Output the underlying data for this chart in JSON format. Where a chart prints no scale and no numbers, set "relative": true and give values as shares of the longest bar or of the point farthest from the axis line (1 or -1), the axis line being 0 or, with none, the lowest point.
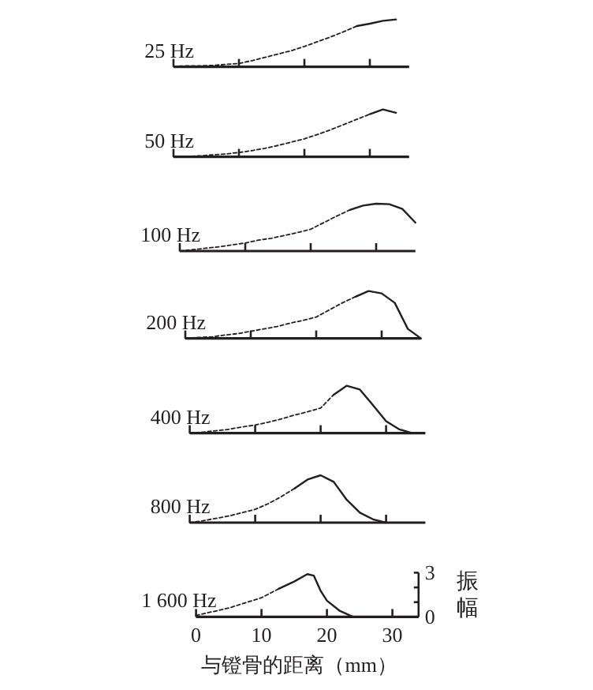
{
  "chart_data": [
    {
      "type": "line",
      "title": "25 Hz",
      "relative": true,
      "categories": [
        null,
        null,
        null,
        null,
        null,
        null,
        null,
        null,
        null,
        null,
        null,
        null,
        null,
        null,
        null,
        null,
        null,
        null,
        null
      ],
      "series": [
        {
          "color": "#231f20",
          "line_style": "dashed",
          "values": [
            0.01,
            0.02,
            0.02,
            0.03,
            0.05,
            0.07,
            0.13,
            0.2,
            0.27,
            0.34,
            0.43,
            0.53,
            0.63,
            0.74,
            0.86,
            null,
            null,
            null,
            null
          ]
        },
        {
          "color": "#231f20",
          "line_style": "solid",
          "values": [
            null,
            null,
            null,
            null,
            null,
            null,
            null,
            null,
            null,
            null,
            null,
            null,
            null,
            null,
            0.86,
            0.91,
            0.97,
            1,
            null
          ]
        }
      ]
    },
    {
      "type": "line",
      "title": "50 Hz",
      "relative": true,
      "categories": [
        null,
        null,
        null,
        null,
        null,
        null,
        null,
        null,
        null,
        null,
        null,
        null,
        null,
        null,
        null,
        null,
        null,
        null,
        null
      ],
      "series": [
        {
          "color": "#231f20",
          "line_style": "dashed",
          "values": [
            0,
            0.01,
            0.02,
            0.04,
            0.06,
            0.09,
            0.13,
            0.18,
            0.24,
            0.31,
            0.38,
            0.47,
            0.57,
            0.68,
            0.79,
            0.9,
            null,
            null,
            null
          ]
        },
        {
          "color": "#231f20",
          "line_style": "solid",
          "values": [
            null,
            null,
            null,
            null,
            null,
            null,
            null,
            null,
            null,
            null,
            null,
            null,
            null,
            null,
            null,
            0.9,
            1,
            0.93,
            null
          ]
        }
      ]
    },
    {
      "type": "line",
      "title": "100 Hz",
      "relative": true,
      "categories": [
        null,
        null,
        null,
        null,
        null,
        null,
        null,
        null,
        null,
        null,
        null,
        null,
        null,
        null,
        null,
        null,
        null,
        null,
        null
      ],
      "series": [
        {
          "color": "#231f20",
          "line_style": "dashed",
          "values": [
            0,
            0.03,
            0.06,
            0.09,
            0.13,
            0.17,
            0.23,
            0.27,
            0.33,
            0.39,
            0.46,
            0.6,
            0.74,
            0.87,
            null,
            null,
            null,
            null,
            null
          ]
        },
        {
          "color": "#231f20",
          "line_style": "solid",
          "values": [
            null,
            null,
            null,
            null,
            null,
            null,
            null,
            null,
            null,
            null,
            null,
            null,
            null,
            0.87,
            0.96,
            1,
            0.99,
            0.89,
            0.6
          ]
        }
      ]
    },
    {
      "type": "line",
      "title": "200 Hz",
      "relative": true,
      "categories": [
        null,
        null,
        null,
        null,
        null,
        null,
        null,
        null,
        null,
        null,
        null,
        null,
        null,
        null,
        null,
        null,
        null,
        null,
        null
      ],
      "series": [
        {
          "color": "#231f20",
          "line_style": "dashed",
          "values": [
            0,
            0.02,
            0.03,
            0.07,
            0.1,
            0.15,
            0.2,
            0.25,
            0.32,
            0.38,
            0.45,
            0.6,
            0.75,
            0.88,
            null,
            null,
            null,
            null,
            null
          ]
        },
        {
          "color": "#231f20",
          "line_style": "solid",
          "values": [
            null,
            null,
            null,
            null,
            null,
            null,
            null,
            null,
            null,
            null,
            null,
            null,
            null,
            0.88,
            1,
            0.95,
            0.75,
            0.2,
            0
          ]
        }
      ]
    },
    {
      "type": "line",
      "title": "400 Hz",
      "relative": true,
      "categories": [
        null,
        null,
        null,
        null,
        null,
        null,
        null,
        null,
        null,
        null,
        null,
        null,
        null,
        null,
        null,
        null,
        null,
        null,
        null
      ],
      "series": [
        {
          "color": "#231f20",
          "line_style": "dashed",
          "values": [
            0,
            0.02,
            0.05,
            0.08,
            0.13,
            0.17,
            0.23,
            0.3,
            0.38,
            0.45,
            0.53,
            0.81,
            null,
            null,
            null,
            null,
            null,
            null,
            null
          ]
        },
        {
          "color": "#231f20",
          "line_style": "solid",
          "values": [
            null,
            null,
            null,
            null,
            null,
            null,
            null,
            null,
            null,
            null,
            null,
            0.81,
            1,
            0.92,
            0.59,
            0.25,
            0.08,
            0,
            null
          ]
        }
      ]
    },
    {
      "type": "line",
      "title": "800 Hz",
      "relative": true,
      "categories": [
        null,
        null,
        null,
        null,
        null,
        null,
        null,
        null,
        null,
        null,
        null,
        null,
        null,
        null,
        null,
        null,
        null,
        null,
        null
      ],
      "series": [
        {
          "color": "#231f20",
          "line_style": "dashed",
          "values": [
            0,
            0.04,
            0.09,
            0.14,
            0.21,
            0.28,
            0.4,
            0.55,
            0.72,
            null,
            null,
            null,
            null,
            null,
            null,
            null,
            null,
            null,
            null
          ]
        },
        {
          "color": "#231f20",
          "line_style": "solid",
          "values": [
            null,
            null,
            null,
            null,
            null,
            null,
            null,
            null,
            0.72,
            0.91,
            1,
            0.86,
            0.48,
            0.21,
            0.07,
            0,
            null,
            null,
            null
          ]
        }
      ]
    },
    {
      "type": "line",
      "title": "1 600 Hz",
      "xlabel": "与镫骨的距离（mm）",
      "ylabel": "振幅",
      "xlim": [
        0,
        34
      ],
      "xticks": [
        0,
        10,
        20,
        30
      ],
      "ylim": [
        0,
        3
      ],
      "yticks": [
        0,
        {
          "value": 1,
          "label": null
        },
        {
          "value": 2,
          "label": null
        },
        3
      ],
      "series": [
        {
          "color": "#231f20",
          "line_style": "dashed",
          "x": [
            0,
            5,
            10,
            12.6
          ],
          "values": [
            0.1,
            0.6,
            1.3,
            1.9
          ]
        },
        {
          "color": "#231f20",
          "line_style": "solid",
          "x": [
            12.6,
            15,
            17,
            18,
            19,
            20,
            22,
            24
          ],
          "values": [
            1.9,
            2.4,
            2.9,
            2.8,
            1.8,
            1.1,
            0.4,
            0
          ]
        }
      ]
    }
  ]
}
